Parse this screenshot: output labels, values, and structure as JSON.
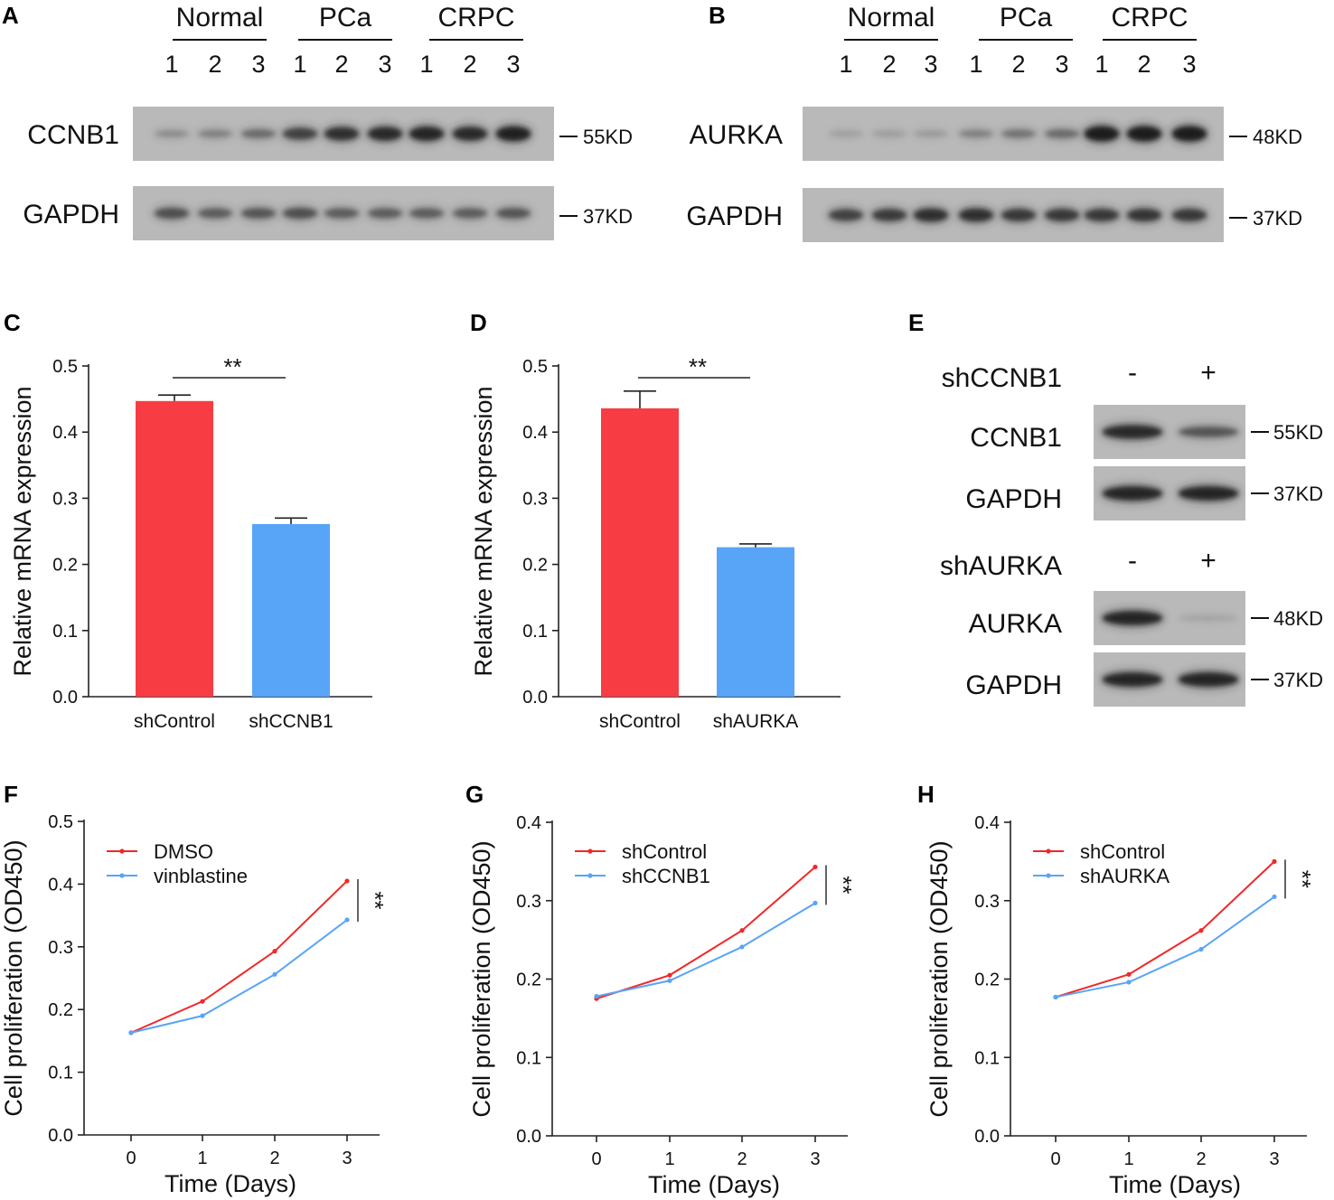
{
  "colors": {
    "red": "#f73d43",
    "blue": "#58a4f7",
    "line_red": "#f02828",
    "line_blue": "#58a4f7",
    "blot_bg": "#b9b9b9",
    "band": "#1c1c1c"
  },
  "panels": {
    "A": {
      "letter": "A",
      "groups": [
        "Normal",
        "PCa",
        "CRPC"
      ],
      "lanes": [
        "1",
        "2",
        "3",
        "1",
        "2",
        "3",
        "1",
        "2",
        "3"
      ],
      "rows": [
        {
          "protein": "CCNB1",
          "kd": "55KD",
          "intensity": [
            0.15,
            0.22,
            0.35,
            0.65,
            0.8,
            0.85,
            0.9,
            0.85,
            0.95
          ]
        },
        {
          "protein": "GAPDH",
          "kd": "37KD",
          "intensity": [
            0.55,
            0.45,
            0.5,
            0.55,
            0.45,
            0.45,
            0.45,
            0.45,
            0.5
          ]
        }
      ]
    },
    "B": {
      "letter": "B",
      "groups": [
        "Normal",
        "PCa",
        "CRPC"
      ],
      "lanes": [
        "1",
        "2",
        "3",
        "1",
        "2",
        "3",
        "1",
        "2",
        "3"
      ],
      "rows": [
        {
          "protein": "AURKA",
          "kd": "48KD",
          "intensity": [
            0.05,
            0.06,
            0.08,
            0.22,
            0.3,
            0.35,
            1.0,
            1.0,
            1.0
          ]
        },
        {
          "protein": "GAPDH",
          "kd": "37KD",
          "intensity": [
            0.65,
            0.7,
            0.8,
            0.8,
            0.72,
            0.72,
            0.72,
            0.75,
            0.72
          ]
        }
      ]
    },
    "E": {
      "letter": "E",
      "blocks": [
        {
          "treatment": "shCCNB1",
          "signs": [
            "-",
            "+"
          ],
          "rows": [
            {
              "protein": "CCNB1",
              "kd": "55KD",
              "intensity": [
                0.85,
                0.5
              ]
            },
            {
              "protein": "GAPDH",
              "kd": "37KD",
              "intensity": [
                0.9,
                0.9
              ]
            }
          ]
        },
        {
          "treatment": "shAURKA",
          "signs": [
            "-",
            "+"
          ],
          "rows": [
            {
              "protein": "AURKA",
              "kd": "48KD",
              "intensity": [
                0.9,
                0.02
              ]
            },
            {
              "protein": "GAPDH",
              "kd": "37KD",
              "intensity": [
                0.9,
                0.9
              ]
            }
          ]
        }
      ]
    }
  },
  "chart_data": [
    {
      "id": "C",
      "letter": "C",
      "type": "bar",
      "categories": [
        "shControl",
        "shCCNB1"
      ],
      "values": [
        0.447,
        0.261
      ],
      "errors": [
        0.009,
        0.009
      ],
      "ylabel": "Relative mRNA expression",
      "ylim": [
        0,
        0.5
      ],
      "yticks": [
        "0.0",
        "0.1",
        "0.2",
        "0.3",
        "0.4",
        "0.5"
      ],
      "significance": "**"
    },
    {
      "id": "D",
      "letter": "D",
      "type": "bar",
      "categories": [
        "shControl",
        "shAURKA"
      ],
      "values": [
        0.436,
        0.226
      ],
      "errors": [
        0.026,
        0.005
      ],
      "ylabel": "Relative mRNA expression",
      "ylim": [
        0,
        0.5
      ],
      "yticks": [
        "0.0",
        "0.1",
        "0.2",
        "0.3",
        "0.4",
        "0.5"
      ],
      "significance": "**"
    },
    {
      "id": "F",
      "letter": "F",
      "type": "line",
      "x": [
        0,
        1,
        2,
        3
      ],
      "xticks": [
        "0",
        "1",
        "2",
        "3"
      ],
      "xlabel": "Time (Days)",
      "ylabel": "Cell proliferation (OD450)",
      "ylim": [
        0,
        0.5
      ],
      "yticks": [
        "0.0",
        "0.1",
        "0.2",
        "0.3",
        "0.4",
        "0.5"
      ],
      "series": [
        {
          "name": "DMSO",
          "values": [
            0.163,
            0.213,
            0.293,
            0.405
          ]
        },
        {
          "name": "vinblastine",
          "values": [
            0.163,
            0.19,
            0.256,
            0.343
          ]
        }
      ],
      "significance": "**"
    },
    {
      "id": "G",
      "letter": "G",
      "type": "line",
      "x": [
        0,
        1,
        2,
        3
      ],
      "xticks": [
        "0",
        "1",
        "2",
        "3"
      ],
      "xlabel": "Time (Days)",
      "ylabel": "Cell proliferation (OD450)",
      "ylim": [
        0,
        0.4
      ],
      "yticks": [
        "0.0",
        "0.1",
        "0.2",
        "0.3",
        "0.4"
      ],
      "series": [
        {
          "name": "shControl",
          "values": [
            0.175,
            0.205,
            0.262,
            0.343
          ]
        },
        {
          "name": "shCCNB1",
          "values": [
            0.178,
            0.198,
            0.241,
            0.297
          ]
        }
      ],
      "significance": "**"
    },
    {
      "id": "H",
      "letter": "H",
      "type": "line",
      "x": [
        0,
        1,
        2,
        3
      ],
      "xticks": [
        "0",
        "1",
        "2",
        "3"
      ],
      "xlabel": "Time (Days)",
      "ylabel": "Cell proliferation (OD450)",
      "ylim": [
        0,
        0.4
      ],
      "yticks": [
        "0.0",
        "0.1",
        "0.2",
        "0.3",
        "0.4"
      ],
      "series": [
        {
          "name": "shControl",
          "values": [
            0.177,
            0.206,
            0.262,
            0.35
          ]
        },
        {
          "name": "shAURKA",
          "values": [
            0.177,
            0.196,
            0.238,
            0.305
          ]
        }
      ],
      "significance": "**"
    }
  ]
}
